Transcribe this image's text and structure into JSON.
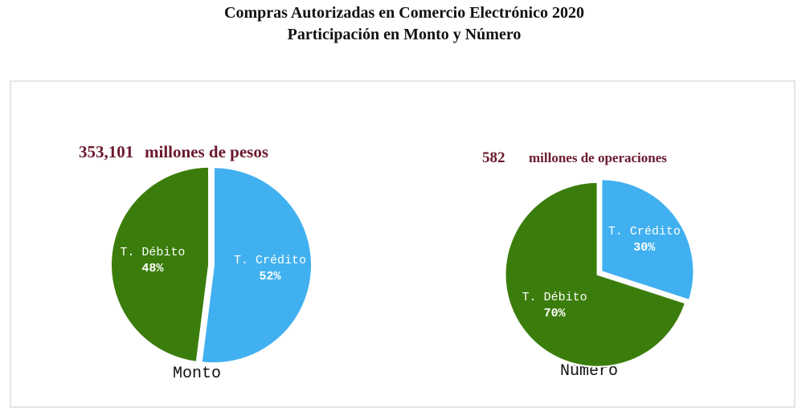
{
  "title": "Compras Autorizadas en Comercio Electrónico 2020",
  "subtitle": "Participación en Monto y Número",
  "chart_data": [
    {
      "type": "pie",
      "caption": "Monto",
      "total": {
        "value": 353101,
        "label": "353,101"
      },
      "total_unit": "millones de pesos",
      "categories": [
        "T. Crédito",
        "T. Débito"
      ],
      "values": [
        52,
        48
      ],
      "value_labels": [
        "52%",
        "48%"
      ],
      "colors": [
        "#41b0f0",
        "#3b7d0c"
      ]
    },
    {
      "type": "pie",
      "caption": "Número",
      "total": 582,
      "total_unit": "millones de operaciones",
      "categories": [
        "T. Crédito",
        "T. Débito"
      ],
      "values": [
        30,
        70
      ],
      "value_labels": [
        "30%",
        "70%"
      ],
      "colors": [
        "#41b0f0",
        "#3b7d0c"
      ]
    }
  ]
}
